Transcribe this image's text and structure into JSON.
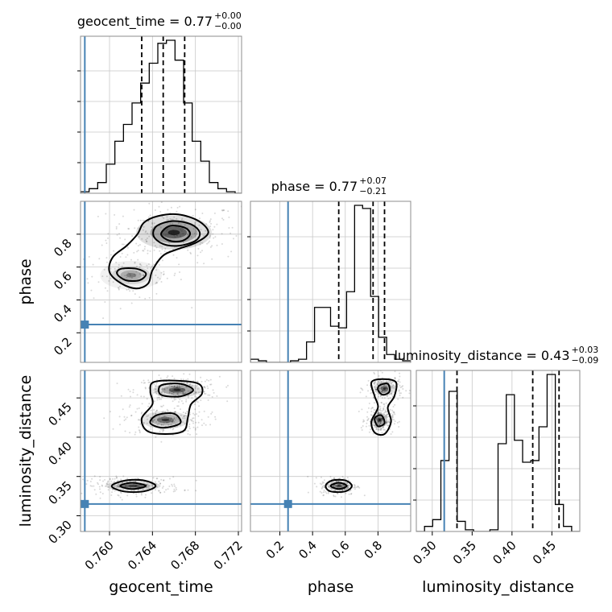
{
  "chart_data": {
    "type": "corner",
    "parameters": [
      "geocent_time",
      "phase",
      "luminosity_distance"
    ],
    "truths": {
      "geocent_time": 0.7577,
      "phase": 0.25,
      "luminosity_distance": 0.315
    },
    "truth_color": "#4682b4",
    "grid": true,
    "titles": [
      {
        "param": "geocent_time",
        "text": "geocent_time = 0.77",
        "sup": "+0.00",
        "sub": "−0.00"
      },
      {
        "param": "phase",
        "text": "phase = 0.77",
        "sup": "+0.07",
        "sub": "−0.21"
      },
      {
        "param": "luminosity_distance",
        "text": "luminosity_distance = 0.43",
        "sup": "+0.03",
        "sub": "−0.09"
      }
    ],
    "axes": {
      "geocent_time": {
        "range": [
          0.7573,
          0.7723
        ],
        "ticks": [
          0.76,
          0.764,
          0.768,
          0.772
        ],
        "tick_labels": [
          "0.760",
          "0.764",
          "0.768",
          "0.772"
        ],
        "label": "geocent_time"
      },
      "phase": {
        "range": [
          0.02,
          1.0
        ],
        "ticks": [
          0.2,
          0.4,
          0.6,
          0.8
        ],
        "tick_labels": [
          "0.2",
          "0.4",
          "0.6",
          "0.8"
        ],
        "label": "phase"
      },
      "luminosity_distance": {
        "range": [
          0.28,
          0.485
        ],
        "ticks": [
          0.3,
          0.35,
          0.4,
          0.45
        ],
        "tick_labels": [
          "0.30",
          "0.35",
          "0.40",
          "0.45"
        ],
        "label": "luminosity_distance"
      }
    },
    "histograms": {
      "geocent_time": {
        "edges": [
          0.7573,
          0.7581,
          0.7589,
          0.7597,
          0.7605,
          0.7613,
          0.7621,
          0.7629,
          0.7637,
          0.7645,
          0.7653,
          0.7661,
          0.7669,
          0.7677,
          0.7685,
          0.7693,
          0.7701,
          0.7709,
          0.7717,
          0.7723
        ],
        "counts": [
          0.01,
          0.03,
          0.07,
          0.19,
          0.34,
          0.45,
          0.59,
          0.72,
          0.85,
          0.98,
          1.0,
          0.87,
          0.59,
          0.34,
          0.21,
          0.07,
          0.03,
          0.01,
          0.0
        ],
        "quantiles": [
          0.763,
          0.765,
          0.767
        ]
      },
      "phase": {
        "edges": [
          0.02,
          0.069,
          0.118,
          0.167,
          0.216,
          0.265,
          0.314,
          0.363,
          0.412,
          0.461,
          0.51,
          0.559,
          0.608,
          0.657,
          0.706,
          0.755,
          0.804,
          0.853,
          0.902,
          0.951,
          1.0
        ],
        "counts": [
          0.02,
          0.01,
          0.0,
          0.0,
          0.0,
          0.01,
          0.02,
          0.13,
          0.35,
          0.35,
          0.23,
          0.22,
          0.45,
          1.0,
          0.98,
          0.42,
          0.16,
          0.05,
          0.02,
          0.01
        ],
        "quantiles": [
          0.56,
          0.77,
          0.84
        ]
      },
      "luminosity_distance": {
        "edges": [
          0.28,
          0.2903,
          0.3005,
          0.3108,
          0.321,
          0.3313,
          0.3415,
          0.3518,
          0.362,
          0.3723,
          0.3825,
          0.3928,
          0.403,
          0.4133,
          0.4235,
          0.4338,
          0.444,
          0.4543,
          0.4645,
          0.4748,
          0.485
        ],
        "counts": [
          0.0,
          0.03,
          0.07,
          0.42,
          0.83,
          0.06,
          0.01,
          0.0,
          0.0,
          0.01,
          0.52,
          0.81,
          0.54,
          0.41,
          0.42,
          0.62,
          0.93,
          0.16,
          0.03,
          0.0
        ],
        "quantiles": [
          0.331,
          0.426,
          0.459
        ]
      }
    },
    "pairs": [
      {
        "x": "geocent_time",
        "y": "phase",
        "blobs": [
          {
            "cx": 0.766,
            "cy": 0.81,
            "sx": 0.0022,
            "sy": 0.065,
            "w": 1.0
          },
          {
            "cx": 0.762,
            "cy": 0.55,
            "sx": 0.0018,
            "sy": 0.055,
            "w": 0.45
          }
        ],
        "contours": [
          [
            [
              0.7611,
              0.5
            ],
            [
              0.7625,
              0.47
            ],
            [
              0.7636,
              0.5
            ],
            [
              0.764,
              0.58
            ],
            [
              0.765,
              0.67
            ],
            [
              0.7664,
              0.71
            ],
            [
              0.7681,
              0.75
            ],
            [
              0.7692,
              0.81
            ],
            [
              0.7683,
              0.88
            ],
            [
              0.7664,
              0.92
            ],
            [
              0.7645,
              0.91
            ],
            [
              0.7632,
              0.87
            ],
            [
              0.7626,
              0.8
            ],
            [
              0.7616,
              0.73
            ],
            [
              0.7603,
              0.66
            ],
            [
              0.76,
              0.57
            ]
          ],
          [
            [
              0.7641,
              0.79
            ],
            [
              0.765,
              0.74
            ],
            [
              0.7665,
              0.73
            ],
            [
              0.768,
              0.76
            ],
            [
              0.7684,
              0.81
            ],
            [
              0.7676,
              0.86
            ],
            [
              0.7659,
              0.88
            ],
            [
              0.7644,
              0.85
            ]
          ],
          [
            [
              0.7648,
              0.8
            ],
            [
              0.7656,
              0.76
            ],
            [
              0.7668,
              0.76
            ],
            [
              0.7675,
              0.8
            ],
            [
              0.767,
              0.84
            ],
            [
              0.7656,
              0.85
            ]
          ],
          [
            [
              0.7607,
              0.56
            ],
            [
              0.7615,
              0.52
            ],
            [
              0.7628,
              0.52
            ],
            [
              0.7634,
              0.56
            ],
            [
              0.7625,
              0.59
            ],
            [
              0.7611,
              0.59
            ]
          ]
        ]
      },
      {
        "x": "geocent_time",
        "y": "luminosity_distance",
        "blobs": [
          {
            "cx": 0.7663,
            "cy": 0.46,
            "sx": 0.0014,
            "sy": 0.006,
            "w": 1.0
          },
          {
            "cx": 0.7652,
            "cy": 0.422,
            "sx": 0.0014,
            "sy": 0.007,
            "w": 0.85
          },
          {
            "cx": 0.7622,
            "cy": 0.338,
            "sx": 0.0016,
            "sy": 0.004,
            "w": 0.95
          }
        ],
        "contours": [
          [
            [
              0.7641,
              0.47
            ],
            [
              0.7662,
              0.472
            ],
            [
              0.7683,
              0.468
            ],
            [
              0.7686,
              0.455
            ],
            [
              0.7676,
              0.442
            ],
            [
              0.7673,
              0.425
            ],
            [
              0.7669,
              0.408
            ],
            [
              0.7652,
              0.404
            ],
            [
              0.7635,
              0.408
            ],
            [
              0.763,
              0.424
            ],
            [
              0.764,
              0.442
            ],
            [
              0.7638,
              0.458
            ]
          ],
          [
            [
              0.7648,
              0.466
            ],
            [
              0.7666,
              0.468
            ],
            [
              0.7678,
              0.46
            ],
            [
              0.7666,
              0.452
            ],
            [
              0.7648,
              0.454
            ]
          ],
          [
            [
              0.7644,
              0.428
            ],
            [
              0.766,
              0.43
            ],
            [
              0.7666,
              0.418
            ],
            [
              0.765,
              0.412
            ],
            [
              0.7638,
              0.418
            ]
          ],
          [
            [
              0.7602,
              0.338
            ],
            [
              0.7615,
              0.345
            ],
            [
              0.7632,
              0.345
            ],
            [
              0.7643,
              0.338
            ],
            [
              0.7632,
              0.331
            ],
            [
              0.7613,
              0.331
            ]
          ],
          [
            [
              0.761,
              0.338
            ],
            [
              0.7621,
              0.342
            ],
            [
              0.7634,
              0.338
            ],
            [
              0.7621,
              0.334
            ]
          ]
        ]
      },
      {
        "x": "phase",
        "y": "luminosity_distance",
        "blobs": [
          {
            "cx": 0.84,
            "cy": 0.462,
            "sx": 0.04,
            "sy": 0.006,
            "w": 0.85
          },
          {
            "cx": 0.81,
            "cy": 0.422,
            "sx": 0.03,
            "sy": 0.006,
            "w": 1.0
          },
          {
            "cx": 0.56,
            "cy": 0.338,
            "sx": 0.04,
            "sy": 0.004,
            "w": 0.9
          }
        ],
        "contours": [
          [
            [
              0.76,
              0.47
            ],
            [
              0.83,
              0.474
            ],
            [
              0.91,
              0.47
            ],
            [
              0.9,
              0.452
            ],
            [
              0.86,
              0.438
            ],
            [
              0.88,
              0.42
            ],
            [
              0.84,
              0.404
            ],
            [
              0.78,
              0.406
            ],
            [
              0.76,
              0.42
            ],
            [
              0.8,
              0.438
            ],
            [
              0.78,
              0.452
            ]
          ],
          [
            [
              0.81,
              0.466
            ],
            [
              0.86,
              0.468
            ],
            [
              0.87,
              0.458
            ],
            [
              0.83,
              0.454
            ],
            [
              0.8,
              0.46
            ]
          ],
          [
            [
              0.78,
              0.424
            ],
            [
              0.82,
              0.428
            ],
            [
              0.84,
              0.418
            ],
            [
              0.8,
              0.414
            ]
          ],
          [
            [
              0.48,
              0.338
            ],
            [
              0.52,
              0.345
            ],
            [
              0.6,
              0.345
            ],
            [
              0.64,
              0.338
            ],
            [
              0.6,
              0.331
            ],
            [
              0.51,
              0.331
            ]
          ],
          [
            [
              0.51,
              0.338
            ],
            [
              0.56,
              0.342
            ],
            [
              0.61,
              0.338
            ],
            [
              0.56,
              0.334
            ]
          ]
        ]
      }
    ]
  }
}
